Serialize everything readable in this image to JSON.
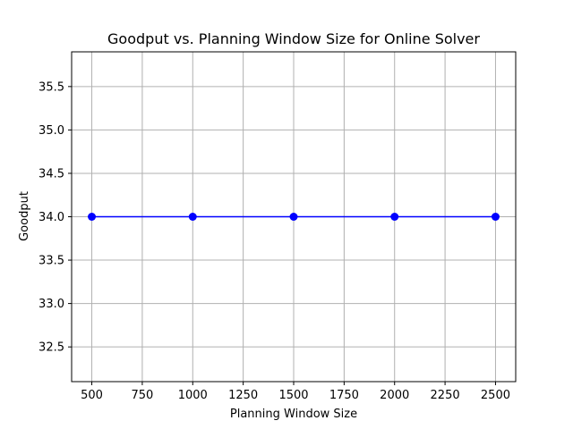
{
  "chart_data": {
    "type": "line",
    "title": "Goodput vs. Planning Window Size for Online Solver",
    "xlabel": "Planning Window Size",
    "ylabel": "Goodput",
    "x": [
      500,
      1000,
      1500,
      2000,
      2500
    ],
    "series": [
      {
        "values": [
          34.0,
          34.0,
          34.0,
          34.0,
          34.0
        ],
        "color": "#0000ff",
        "marker": "circle"
      }
    ],
    "xlim": [
      400,
      2600
    ],
    "ylim": [
      32.1,
      35.9
    ],
    "xticks": [
      500,
      750,
      1000,
      1250,
      1500,
      1750,
      2000,
      2250,
      2500
    ],
    "yticks": [
      32.5,
      33.0,
      33.5,
      34.0,
      34.5,
      35.0,
      35.5
    ],
    "xtick_labels": [
      "500",
      "750",
      "1000",
      "1250",
      "1500",
      "1750",
      "2000",
      "2250",
      "2500"
    ],
    "ytick_labels": [
      "32.5",
      "33.0",
      "33.5",
      "34.0",
      "34.5",
      "35.0",
      "35.5"
    ],
    "grid": true,
    "legend": "none"
  }
}
